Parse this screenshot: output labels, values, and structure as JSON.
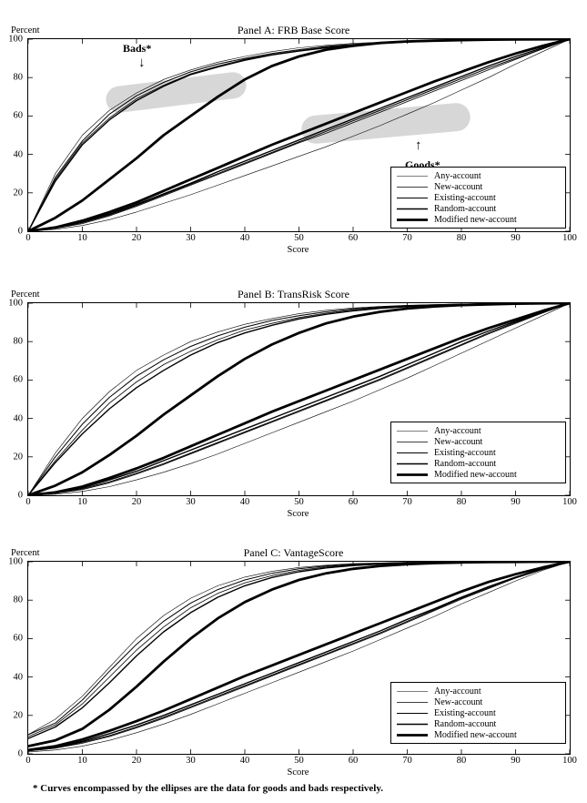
{
  "figure": {
    "footnote": "* Curves encompassed by the ellipses are the data for goods and bads respectively."
  },
  "legend": {
    "labels": [
      "Any-account",
      "New-account",
      "Existing-account",
      "Random-account",
      "Modified new-account"
    ]
  },
  "style": {
    "line_widths": [
      0.6,
      0.8,
      1.0,
      1.4,
      2.8
    ],
    "curve_color": "#000000",
    "ellipse_color": "#d7d7d7"
  },
  "panels": [
    {
      "title": "Panel A: FRB Base Score",
      "ylabel": "Percent",
      "xlabel": "Score",
      "x_ticks": [
        0,
        10,
        20,
        30,
        40,
        50,
        60,
        70,
        80,
        90,
        100
      ],
      "y_ticks": [
        0,
        20,
        40,
        60,
        80,
        100
      ],
      "annotations": {
        "bads_label": "Bads*",
        "bads_arrow": "↓",
        "goods_label": "Goods*",
        "goods_arrow": "↑"
      }
    },
    {
      "title": "Panel B: TransRisk Score",
      "ylabel": "Percent",
      "xlabel": "Score",
      "x_ticks": [
        0,
        10,
        20,
        30,
        40,
        50,
        60,
        70,
        80,
        90,
        100
      ],
      "y_ticks": [
        0,
        20,
        40,
        60,
        80,
        100
      ]
    },
    {
      "title": "Panel C: VantageScore",
      "ylabel": "Percent",
      "xlabel": "Score",
      "x_ticks": [
        0,
        10,
        20,
        30,
        40,
        50,
        60,
        70,
        80,
        90,
        100
      ],
      "y_ticks": [
        0,
        20,
        40,
        60,
        80,
        100
      ]
    }
  ],
  "chart_data": [
    {
      "type": "line",
      "title": "Panel A: FRB Base Score",
      "xlabel": "Score",
      "ylabel": "Percent",
      "xlim": [
        0,
        100
      ],
      "ylim": [
        0,
        100
      ],
      "grid": false,
      "legend_position": "lower right",
      "annotations": [
        "Bads*",
        "Goods*"
      ],
      "x": [
        0,
        5,
        10,
        15,
        20,
        25,
        30,
        35,
        40,
        45,
        50,
        55,
        60,
        65,
        70,
        75,
        80,
        85,
        90,
        95,
        100
      ],
      "series": [
        {
          "name": "Any-account",
          "group": "bads",
          "values": [
            0,
            30,
            50,
            63,
            72,
            79,
            84,
            88,
            91,
            93.5,
            95.5,
            96.8,
            97.8,
            98.4,
            98.9,
            99.2,
            99.5,
            99.7,
            99.8,
            99.9,
            100
          ]
        },
        {
          "name": "New-account",
          "group": "bads",
          "values": [
            0,
            27,
            46,
            59,
            69,
            76,
            82,
            86,
            89.5,
            92,
            94,
            95.8,
            97,
            98,
            98.6,
            99,
            99.4,
            99.6,
            99.8,
            99.9,
            100
          ]
        },
        {
          "name": "Existing-account",
          "group": "bads",
          "values": [
            0,
            28,
            47,
            61,
            70.5,
            77.5,
            83,
            87,
            90,
            92.5,
            94.5,
            96.2,
            97.3,
            98.1,
            98.7,
            99.1,
            99.4,
            99.6,
            99.8,
            99.9,
            100
          ]
        },
        {
          "name": "Random-account",
          "group": "bads",
          "values": [
            0,
            26,
            45,
            58,
            68,
            75.5,
            81.5,
            85.5,
            89,
            91.8,
            93.8,
            95.5,
            96.8,
            97.8,
            98.5,
            99,
            99.3,
            99.6,
            99.8,
            99.9,
            100
          ]
        },
        {
          "name": "Modified new-account",
          "group": "bads",
          "values": [
            0,
            7,
            16,
            27,
            38,
            50,
            60,
            70,
            79,
            86,
            91,
            94.5,
            96.5,
            98,
            98.8,
            99.2,
            99.5,
            99.7,
            99.8,
            99.9,
            100
          ]
        },
        {
          "name": "Any-account",
          "group": "goods",
          "values": [
            0,
            1,
            3,
            6,
            10,
            14.5,
            19,
            24,
            29,
            34,
            39,
            44,
            49.5,
            55,
            61,
            67,
            73.5,
            80,
            87,
            93.5,
            100
          ]
        },
        {
          "name": "New-account",
          "group": "goods",
          "values": [
            0,
            1.5,
            4,
            8,
            13,
            18.5,
            24,
            29.5,
            35,
            40.5,
            46,
            51,
            56.5,
            62,
            67.5,
            73,
            78.5,
            84,
            89.5,
            95,
            100
          ]
        },
        {
          "name": "Existing-account",
          "group": "goods",
          "values": [
            0,
            1.5,
            4.5,
            8.5,
            13.5,
            19,
            24.5,
            30,
            35.5,
            41,
            46.5,
            52,
            57.5,
            63,
            68.5,
            74,
            79.5,
            85,
            90,
            95,
            100
          ]
        },
        {
          "name": "Random-account",
          "group": "goods",
          "values": [
            0,
            2,
            5,
            9,
            14,
            19.5,
            25,
            31,
            36.5,
            42,
            47.5,
            53,
            58.5,
            64,
            69.5,
            75,
            80.5,
            86,
            91,
            95.5,
            100
          ]
        },
        {
          "name": "Modified new-account",
          "group": "goods",
          "values": [
            0,
            2,
            5.5,
            10,
            15,
            21,
            27,
            33,
            39,
            45,
            50.5,
            56,
            61.5,
            67,
            72.5,
            78,
            83,
            88,
            92.5,
            96.5,
            100
          ]
        }
      ]
    },
    {
      "type": "line",
      "title": "Panel B: TransRisk Score",
      "xlabel": "Score",
      "ylabel": "Percent",
      "xlim": [
        0,
        100
      ],
      "ylim": [
        0,
        100
      ],
      "grid": false,
      "legend_position": "lower right",
      "x": [
        0,
        5,
        10,
        15,
        20,
        25,
        30,
        35,
        40,
        45,
        50,
        55,
        60,
        65,
        70,
        75,
        80,
        85,
        90,
        95,
        100
      ],
      "series": [
        {
          "name": "Any-account",
          "group": "bads",
          "values": [
            0,
            22,
            40,
            54,
            65,
            73,
            80,
            85,
            89,
            92,
            94.5,
            96.3,
            97.5,
            98.3,
            98.9,
            99.3,
            99.6,
            99.8,
            99.9,
            99.95,
            100
          ]
        },
        {
          "name": "New-account",
          "group": "bads",
          "values": [
            0,
            18,
            34,
            48,
            59,
            68,
            75,
            81,
            86,
            89.5,
            92.5,
            94.8,
            96.5,
            97.7,
            98.5,
            99,
            99.4,
            99.7,
            99.8,
            99.9,
            100
          ]
        },
        {
          "name": "Existing-account",
          "group": "bads",
          "values": [
            0,
            20,
            37,
            51,
            62,
            70.5,
            77.5,
            83,
            87.5,
            91,
            93.5,
            95.5,
            97,
            98,
            98.7,
            99.2,
            99.5,
            99.7,
            99.85,
            99.95,
            100
          ]
        },
        {
          "name": "Random-account",
          "group": "bads",
          "values": [
            0,
            17,
            32,
            45,
            56,
            65,
            73,
            79.5,
            84.5,
            88.5,
            91.8,
            94.2,
            96,
            97.3,
            98.2,
            98.9,
            99.3,
            99.6,
            99.8,
            99.9,
            100
          ]
        },
        {
          "name": "Modified new-account",
          "group": "bads",
          "values": [
            0,
            5,
            12,
            21,
            31,
            42,
            52,
            62,
            71,
            78.5,
            84.5,
            89.5,
            93,
            95.5,
            97.2,
            98.3,
            99,
            99.4,
            99.7,
            99.9,
            100
          ]
        },
        {
          "name": "Any-account",
          "group": "goods",
          "values": [
            0,
            0.5,
            2,
            4.5,
            8,
            12,
            16.5,
            21.5,
            27,
            32.5,
            38,
            43.5,
            49,
            55,
            61,
            67.5,
            74,
            80.5,
            87,
            93.5,
            100
          ]
        },
        {
          "name": "New-account",
          "group": "goods",
          "values": [
            0,
            1,
            3,
            6.5,
            11,
            16,
            21.5,
            27,
            32.5,
            38,
            43.5,
            49,
            54.5,
            60,
            66,
            72,
            78,
            84,
            89.5,
            95,
            100
          ]
        },
        {
          "name": "Existing-account",
          "group": "goods",
          "values": [
            0,
            1,
            3.5,
            7,
            11.5,
            16.5,
            22,
            27.5,
            33,
            38.5,
            44,
            49.5,
            55,
            60.5,
            66.5,
            72.5,
            78.5,
            84.5,
            90,
            95,
            100
          ]
        },
        {
          "name": "Random-account",
          "group": "goods",
          "values": [
            0,
            1.5,
            4,
            8,
            12.5,
            18,
            23.5,
            29,
            34.5,
            40,
            45.5,
            51,
            56.5,
            62,
            68,
            74,
            80,
            85.5,
            90.5,
            95.5,
            100
          ]
        },
        {
          "name": "Modified new-account",
          "group": "goods",
          "values": [
            0,
            1.5,
            4.5,
            9,
            14,
            19.5,
            25.5,
            31.5,
            37.5,
            43.5,
            49,
            54.5,
            60,
            65.5,
            71,
            76.5,
            82,
            87,
            91.5,
            96,
            100
          ]
        }
      ]
    },
    {
      "type": "line",
      "title": "Panel C: VantageScore",
      "xlabel": "Score",
      "ylabel": "Percent",
      "xlim": [
        0,
        100
      ],
      "ylim": [
        0,
        100
      ],
      "grid": false,
      "legend_position": "lower right",
      "x": [
        0,
        5,
        10,
        15,
        20,
        25,
        30,
        35,
        40,
        45,
        50,
        55,
        60,
        65,
        70,
        75,
        80,
        85,
        90,
        95,
        100
      ],
      "series": [
        {
          "name": "Any-account",
          "group": "bads",
          "values": [
            10,
            18,
            30,
            45,
            60,
            72,
            81,
            87.5,
            92,
            95,
            97,
            98.2,
            99,
            99.4,
            99.7,
            99.8,
            99.9,
            99.95,
            100,
            100,
            100
          ]
        },
        {
          "name": "New-account",
          "group": "bads",
          "values": [
            9,
            15,
            26,
            40,
            54,
            66,
            76,
            83.5,
            89,
            92.8,
            95.5,
            97.3,
            98.4,
            99,
            99.4,
            99.7,
            99.8,
            99.9,
            99.95,
            100,
            100
          ]
        },
        {
          "name": "Existing-account",
          "group": "bads",
          "values": [
            10,
            16,
            28,
            43,
            57,
            69,
            78.5,
            85.5,
            90.5,
            94,
            96.3,
            97.8,
            98.7,
            99.2,
            99.6,
            99.8,
            99.9,
            99.95,
            100,
            100,
            100
          ]
        },
        {
          "name": "Random-account",
          "group": "bads",
          "values": [
            8,
            14,
            24,
            37,
            51,
            63.5,
            73.5,
            81.5,
            87.5,
            91.8,
            94.8,
            96.8,
            98,
            98.8,
            99.3,
            99.6,
            99.8,
            99.9,
            100,
            100,
            100
          ]
        },
        {
          "name": "Modified new-account",
          "group": "bads",
          "values": [
            4,
            7,
            13,
            23,
            35,
            48,
            60,
            70.5,
            79,
            85.5,
            90.5,
            94,
            96.3,
            97.8,
            98.7,
            99.3,
            99.6,
            99.8,
            99.9,
            100,
            100
          ]
        },
        {
          "name": "Any-account",
          "group": "goods",
          "values": [
            1,
            2,
            4,
            7,
            11,
            15.5,
            20.5,
            26,
            31.5,
            37,
            42.5,
            48,
            53.5,
            59.5,
            65.5,
            71.5,
            78,
            84,
            90,
            95.5,
            100
          ]
        },
        {
          "name": "New-account",
          "group": "goods",
          "values": [
            1.5,
            3,
            5.5,
            9,
            13.5,
            18.5,
            24,
            29.5,
            35,
            40.5,
            46,
            51.5,
            57,
            62.5,
            68.5,
            74.5,
            80.5,
            86,
            91.5,
            96,
            100
          ]
        },
        {
          "name": "Existing-account",
          "group": "goods",
          "values": [
            1.5,
            3,
            6,
            9.5,
            14,
            19,
            24.5,
            30,
            35.5,
            41,
            46.5,
            52,
            57.5,
            63,
            69,
            75,
            81,
            86.5,
            91.5,
            96,
            100
          ]
        },
        {
          "name": "Random-account",
          "group": "goods",
          "values": [
            2,
            3.5,
            6.5,
            10.5,
            15,
            20,
            25.5,
            31,
            36.5,
            42,
            47.5,
            53,
            58.5,
            64,
            70,
            75.5,
            81.5,
            87,
            92,
            96.5,
            100
          ]
        },
        {
          "name": "Modified new-account",
          "group": "goods",
          "values": [
            2,
            4,
            7.5,
            12,
            17,
            22.5,
            28.5,
            34.5,
            40.5,
            46,
            51.5,
            57,
            62.5,
            68,
            73.5,
            79,
            84.5,
            89.5,
            93.5,
            97,
            100
          ]
        }
      ]
    }
  ]
}
